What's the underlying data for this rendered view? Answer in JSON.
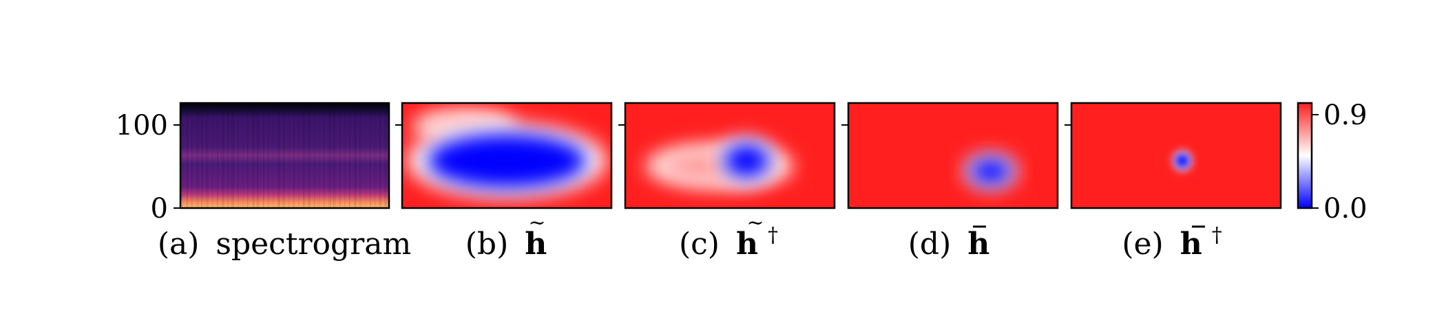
{
  "chart_data": [
    {
      "type": "heatmap",
      "panel": "a",
      "caption_letter": "(a)",
      "caption_name": "spectrogram",
      "ylim": [
        0,
        125
      ],
      "yticks": [
        0,
        100
      ],
      "tick_labels": [
        "0",
        "100"
      ],
      "colormap": "magma",
      "description_of_values": "low energy (purple) band from about 20 to 120, bright yellow-orange band near 0 to 15, dark band above 120"
    },
    {
      "type": "heatmap",
      "panel": "b",
      "caption_letter": "(b)",
      "caption_sym": "h",
      "caption_accent": "tilde",
      "caption_sup": "",
      "colormap": "bwr",
      "blobs": [
        {
          "cx": 0.5,
          "cy": 0.55,
          "rx": 0.38,
          "ry": 0.26,
          "value": 0.0
        },
        {
          "cx": 0.3,
          "cy": 0.22,
          "rx": 0.2,
          "ry": 0.1,
          "value": 0.6
        }
      ]
    },
    {
      "type": "heatmap",
      "panel": "c",
      "caption_letter": "(c)",
      "caption_sym": "h",
      "caption_accent": "tilde",
      "caption_sup": "†",
      "colormap": "bwr",
      "blobs": [
        {
          "cx": 0.58,
          "cy": 0.55,
          "rx": 0.11,
          "ry": 0.16,
          "value": 0.0
        },
        {
          "cx": 0.45,
          "cy": 0.6,
          "rx": 0.28,
          "ry": 0.15,
          "value": 0.65
        }
      ]
    },
    {
      "type": "heatmap",
      "panel": "d",
      "caption_letter": "(d)",
      "caption_sym": "h",
      "caption_accent": "bar",
      "caption_sup": "",
      "colormap": "bwr",
      "blobs": [
        {
          "cx": 0.68,
          "cy": 0.65,
          "rx": 0.1,
          "ry": 0.12,
          "value": 0.0
        }
      ]
    },
    {
      "type": "heatmap",
      "panel": "e",
      "caption_letter": "(e)",
      "caption_sym": "h",
      "caption_accent": "bar",
      "caption_sup": "†",
      "colormap": "bwr",
      "blobs": [
        {
          "cx": 0.53,
          "cy": 0.55,
          "rx": 0.035,
          "ry": 0.07,
          "value": 0.0
        }
      ]
    }
  ],
  "colorbar": {
    "vmin": 0.0,
    "vmax": 0.9,
    "tick_labels": [
      "0.0",
      "0.9"
    ],
    "colormap": "bwr",
    "colors": {
      "low": "#0000ff",
      "mid": "#ffffff",
      "high": "#ff1f1f"
    }
  }
}
